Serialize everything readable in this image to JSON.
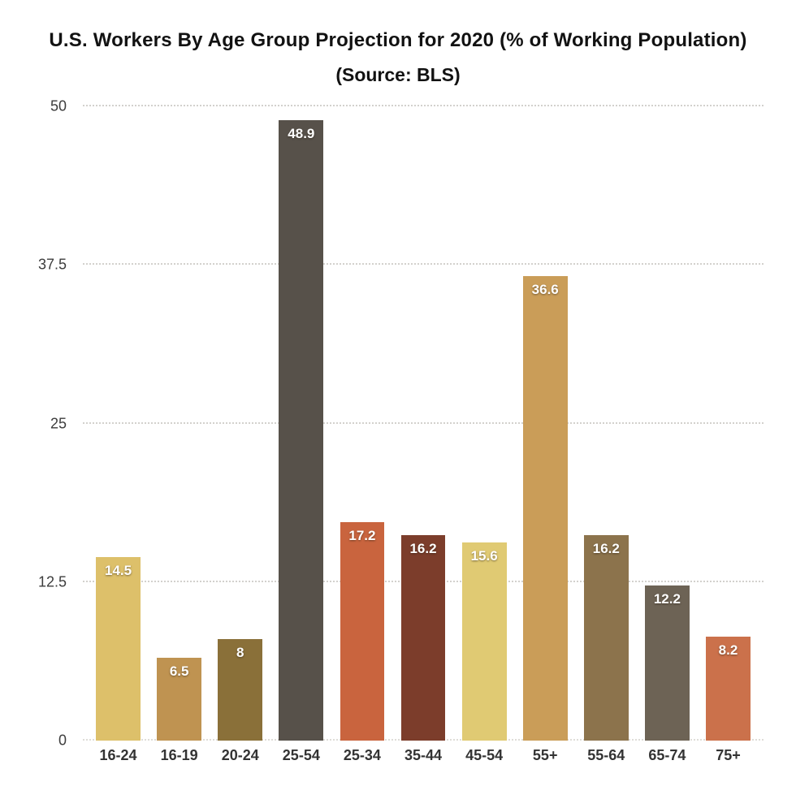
{
  "header": {
    "title": "U.S. Workers By Age Group Projection for 2020 (% of Working Population)",
    "subtitle": "(Source: BLS)"
  },
  "chart_data": {
    "type": "bar",
    "title": "U.S. Workers By Age Group Projection for 2020 (% of Working Population)",
    "subtitle": "(Source: BLS)",
    "categories": [
      "16-24",
      "16-19",
      "20-24",
      "25-54",
      "25-34",
      "35-44",
      "45-54",
      "55+",
      "55-64",
      "65-74",
      "75+"
    ],
    "values": [
      14.5,
      6.5,
      8,
      48.9,
      17.2,
      16.2,
      15.6,
      36.6,
      16.2,
      12.2,
      8.2
    ],
    "value_labels": [
      "14.5",
      "6.5",
      "8",
      "48.9",
      "17.2",
      "16.2",
      "15.6",
      "36.6",
      "16.2",
      "12.2",
      "8.2"
    ],
    "bar_colors": [
      "#ddc06a",
      "#bf9351",
      "#8a7039",
      "#57514a",
      "#c9643e",
      "#7c3d2b",
      "#e0ca73",
      "#ca9d58",
      "#8c734c",
      "#6d6355",
      "#cb714b"
    ],
    "xlabel": "",
    "ylabel": "",
    "ylim": [
      0,
      50
    ],
    "yticks": [
      0,
      12.5,
      25,
      37.5,
      50
    ],
    "ytick_labels": [
      "0",
      "12.5",
      "25",
      "37.5",
      "50"
    ],
    "grid": "horizontal-dotted",
    "legend": "none",
    "value_label_color": "#ffffff",
    "background": "#ffffff"
  }
}
